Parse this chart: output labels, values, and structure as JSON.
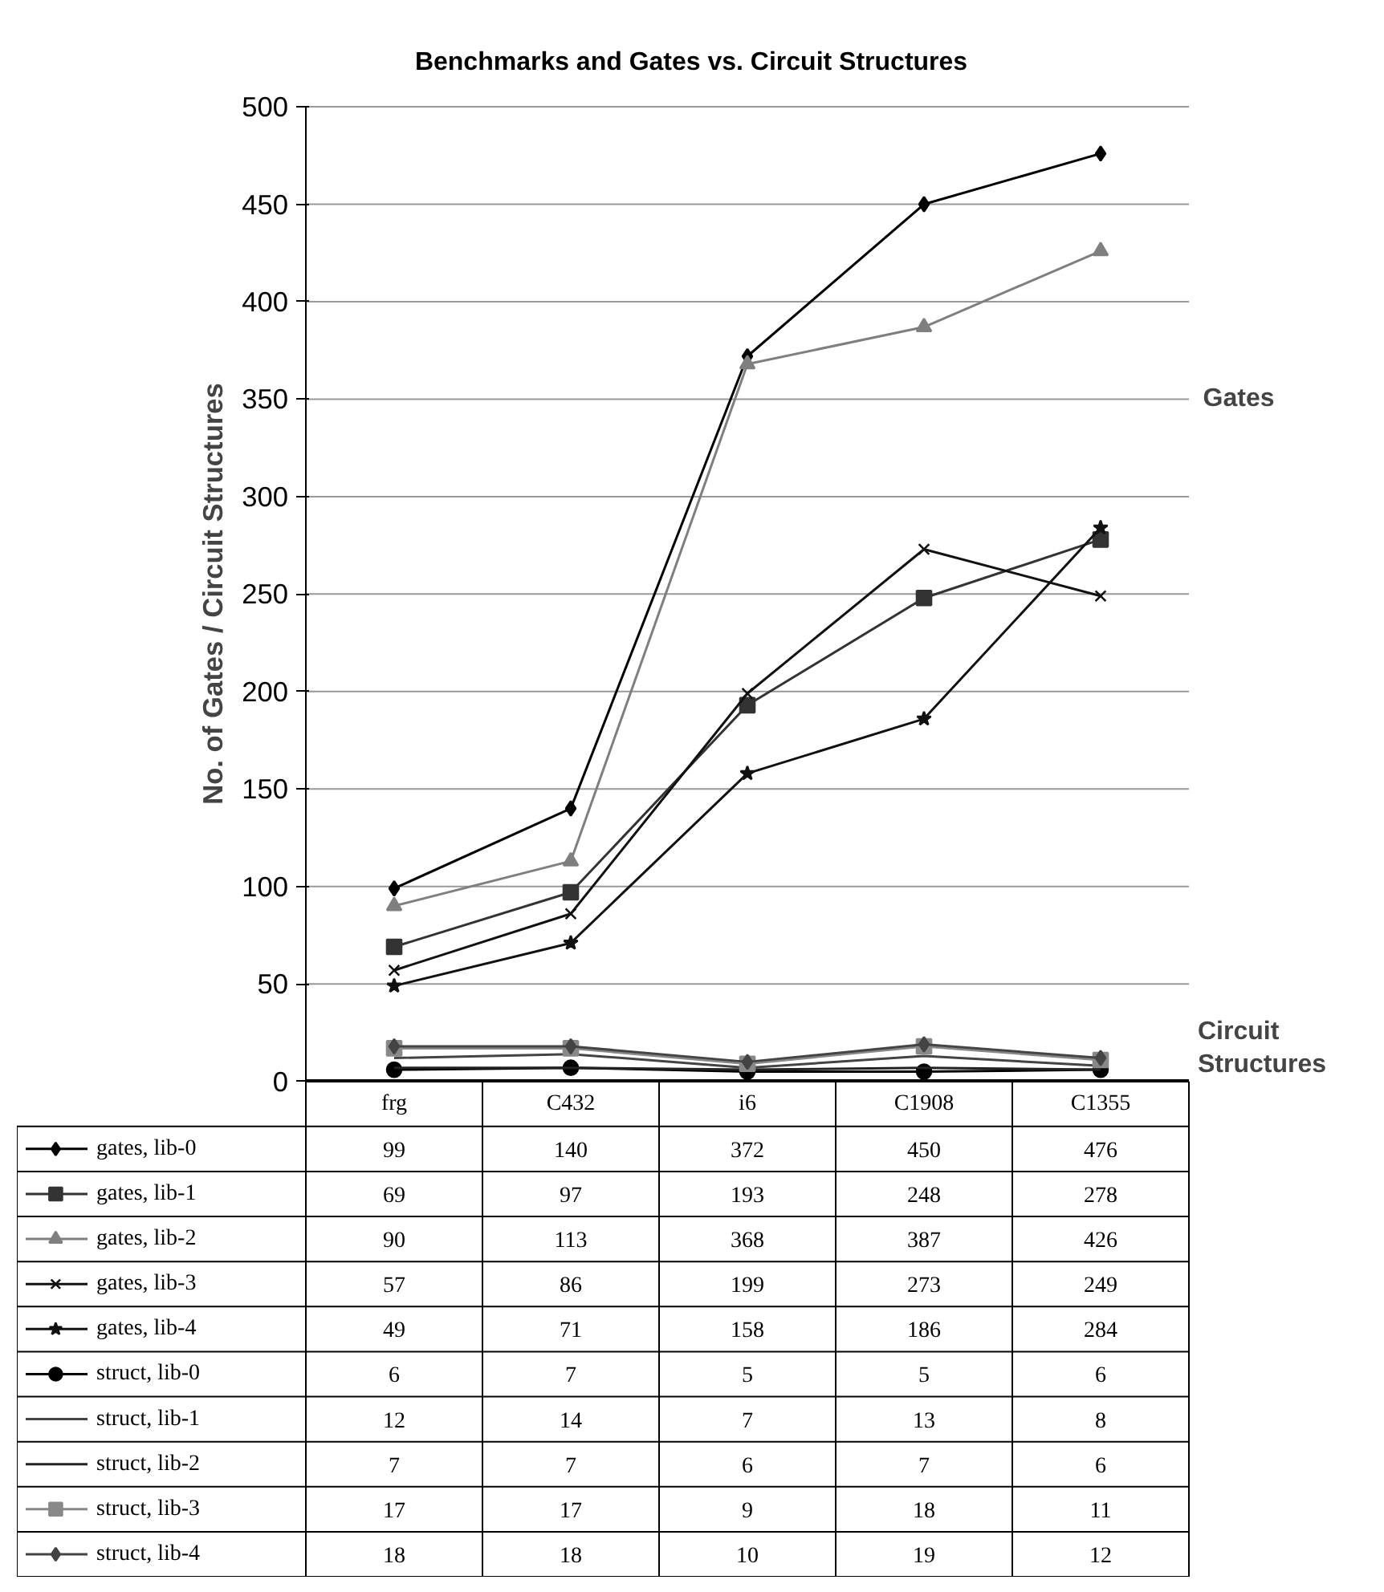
{
  "chart_data": {
    "type": "line",
    "title": "Benchmarks and Gates vs. Circuit Structures",
    "ylabel": "No. of Gates / Circuit Structures",
    "categories": [
      "frg",
      "C432",
      "i6",
      "C1908",
      "C1355"
    ],
    "ylim": [
      0,
      500
    ],
    "yticks": [
      0,
      50,
      100,
      150,
      200,
      250,
      300,
      350,
      400,
      450,
      500
    ],
    "grid": "y",
    "legend": "bottom",
    "data_labels": true,
    "annotations": [
      "Gates",
      "Circuit Structures"
    ],
    "series": [
      {
        "name": "gates, lib-0",
        "color": "#000000",
        "marker": "diamond",
        "values": [
          99,
          140,
          372,
          450,
          476
        ]
      },
      {
        "name": "gates, lib-1",
        "color": "#333333",
        "marker": "square",
        "values": [
          69,
          97,
          193,
          248,
          278
        ]
      },
      {
        "name": "gates, lib-2",
        "color": "#7f7f7f",
        "marker": "triangle",
        "values": [
          90,
          113,
          368,
          387,
          426
        ]
      },
      {
        "name": "gates, lib-3",
        "color": "#111111",
        "marker": "cross",
        "values": [
          57,
          86,
          199,
          273,
          249
        ]
      },
      {
        "name": "gates, lib-4",
        "color": "#111111",
        "marker": "star",
        "values": [
          49,
          71,
          158,
          186,
          284
        ]
      },
      {
        "name": "struct, lib-0",
        "color": "#000000",
        "marker": "circle",
        "values": [
          6,
          7,
          5,
          5,
          6
        ]
      },
      {
        "name": "struct, lib-1",
        "color": "#444444",
        "marker": "none",
        "values": [
          12,
          14,
          7,
          13,
          8
        ]
      },
      {
        "name": "struct, lib-2",
        "color": "#222222",
        "marker": "none",
        "values": [
          7,
          7,
          6,
          7,
          6
        ]
      },
      {
        "name": "struct, lib-3",
        "color": "#888888",
        "marker": "square",
        "values": [
          17,
          17,
          9,
          18,
          11
        ]
      },
      {
        "name": "struct, lib-4",
        "color": "#444444",
        "marker": "diamond",
        "values": [
          18,
          18,
          10,
          19,
          12
        ]
      }
    ]
  }
}
